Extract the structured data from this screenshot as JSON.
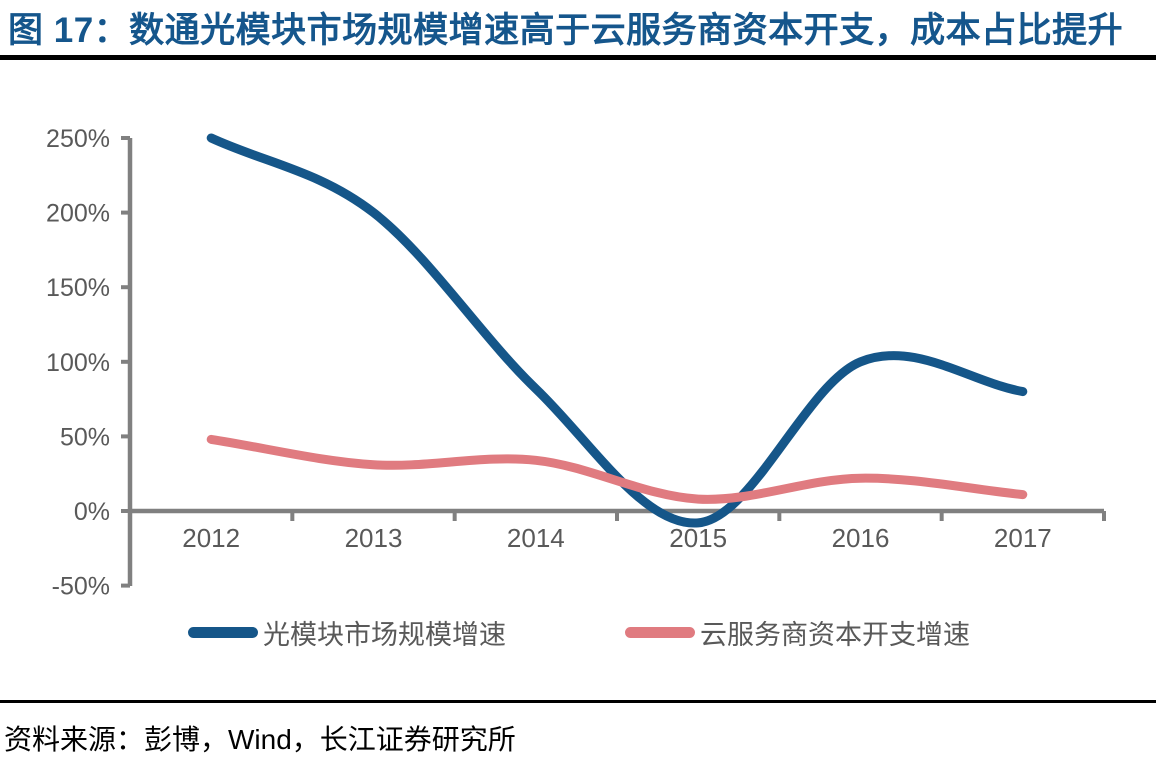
{
  "header": {
    "title": "图 17：数通光模块市场规模增速高于云服务商资本开支，成本占比提升"
  },
  "source": {
    "text": "资料来源：彭博，Wind，长江证券研究所"
  },
  "colors": {
    "title": "#15568C",
    "rule": "#000000",
    "axis": "#808080",
    "tick_label": "#595959",
    "legend_label": "#595959",
    "series_blue": "#155689",
    "series_pink": "#E07B80"
  },
  "chart_data": {
    "type": "line",
    "title": "图 17：数通光模块市场规模增速高于云服务商资本开支，成本占比提升",
    "xlabel": "",
    "ylabel": "",
    "categories": [
      "2012",
      "2013",
      "2014",
      "2015",
      "2016",
      "2017"
    ],
    "series": [
      {
        "name": "光模块市场规模增速",
        "color": "#155689",
        "values": [
          250,
          200,
          82,
          -8,
          100,
          80
        ]
      },
      {
        "name": "云服务商资本开支增速",
        "color": "#E07B80",
        "values": [
          48,
          31,
          34,
          8,
          22,
          11
        ]
      }
    ],
    "ylim": [
      -50,
      250
    ],
    "ytick_values": [
      250,
      200,
      150,
      100,
      50,
      0,
      -50
    ],
    "ytick_labels": [
      "250%",
      "200%",
      "150%",
      "100%",
      "50%",
      "0%",
      "-50%"
    ],
    "grid": false,
    "smooth": true,
    "legend_position": "bottom"
  }
}
